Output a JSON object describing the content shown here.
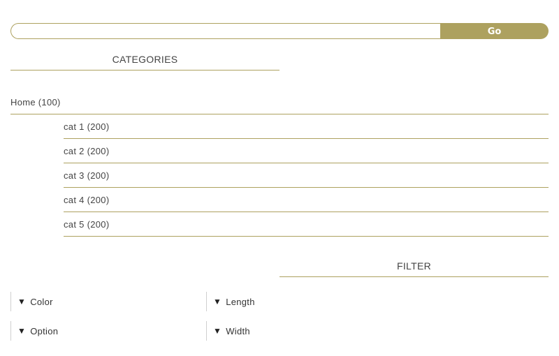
{
  "search": {
    "value": "",
    "placeholder": "",
    "go_label": "Go"
  },
  "colors": {
    "accent": "#ada15f"
  },
  "categories": {
    "title": "CATEGORIES",
    "home": "Home (100)",
    "items": [
      "cat 1 (200)",
      "cat 2 (200)",
      "cat 3 (200)",
      "cat 4 (200)",
      "cat 5 (200)"
    ]
  },
  "filter": {
    "title": "FILTER",
    "arrow_icon": "triangle-down-icon",
    "items": [
      "Color",
      "Length",
      "Option",
      "Width"
    ]
  }
}
